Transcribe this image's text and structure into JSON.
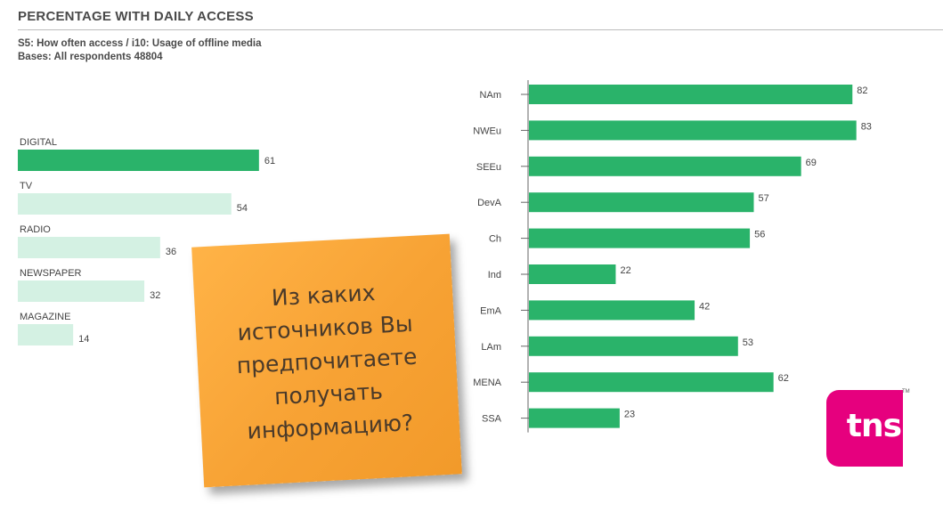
{
  "header": {
    "title": "PERCENTAGE WITH DAILY ACCESS",
    "subtitle_1": "S5: How often access / i10: Usage of offline media",
    "subtitle_2": "Bases: All respondents 48804"
  },
  "note": {
    "text": "Из каких источников Вы предпочитаете получать информацию?"
  },
  "logo": {
    "text": "tns",
    "tm": "TM"
  },
  "colors": {
    "primary": "#2ab36a",
    "light": "#d4f1e3",
    "note": "#f7a234",
    "brand": "#e6007e"
  },
  "chart_data": [
    {
      "type": "bar",
      "orientation": "horizontal",
      "categories": [
        "DIGITAL",
        "TV",
        "RADIO",
        "NEWSPAPER",
        "MAGAZINE"
      ],
      "values": [
        61,
        54,
        36,
        32,
        14
      ],
      "highlight": [
        "DIGITAL"
      ],
      "xlim": [
        0,
        100
      ],
      "grid": false
    },
    {
      "type": "bar",
      "orientation": "horizontal",
      "categories": [
        "NAm",
        "NWEu",
        "SEEu",
        "DevA",
        "Ch",
        "Ind",
        "EmA",
        "LAm",
        "MENA",
        "SSA"
      ],
      "values": [
        82,
        83,
        69,
        57,
        56,
        22,
        42,
        53,
        62,
        23
      ],
      "xlim": [
        0,
        100
      ],
      "grid": false
    }
  ]
}
